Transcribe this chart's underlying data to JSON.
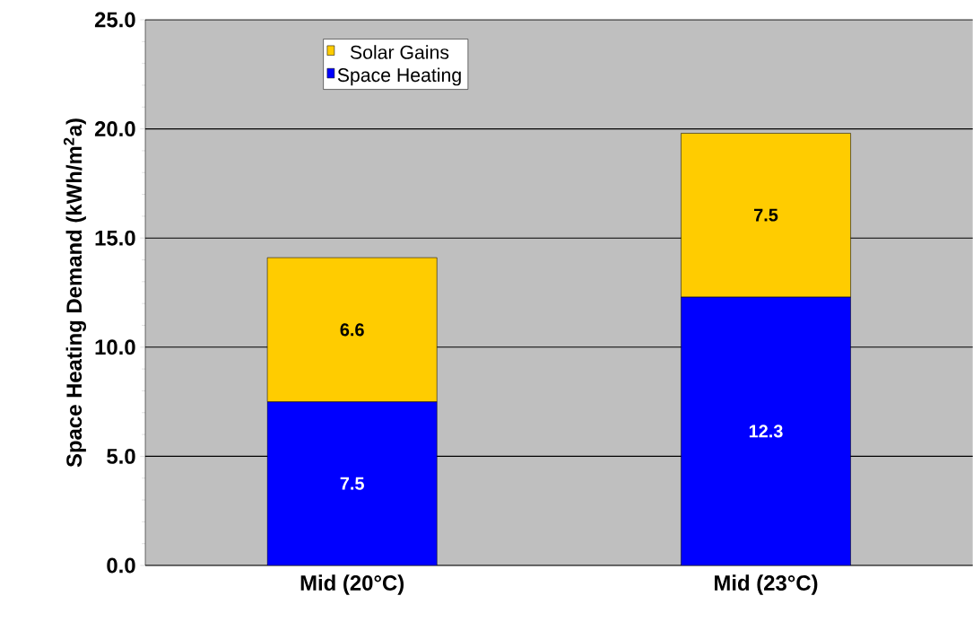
{
  "chart_data": {
    "type": "bar",
    "stacked": true,
    "ylabel": "Space Heating Demand (kWh/m$^{2}$a)",
    "categories": [
      "Mid (20°C)",
      "Mid (23°C)"
    ],
    "series": [
      {
        "name": "Space Heating",
        "color": "#0000ff",
        "values": [
          7.5,
          12.3
        ]
      },
      {
        "name": "Solar Gains",
        "color": "#ffcc00",
        "values": [
          6.6,
          7.5
        ]
      }
    ],
    "ylim": [
      0,
      25
    ],
    "yticks": [
      {
        "value": 0,
        "label": "0.0"
      },
      {
        "value": 5,
        "label": "5.0"
      },
      {
        "value": 10,
        "label": "10.0"
      },
      {
        "value": 15,
        "label": "15.0"
      },
      {
        "value": 20,
        "label": "20.0"
      },
      {
        "value": 25,
        "label": "25.0"
      }
    ],
    "grid": "y",
    "legend": "top left",
    "data_labels": true
  }
}
